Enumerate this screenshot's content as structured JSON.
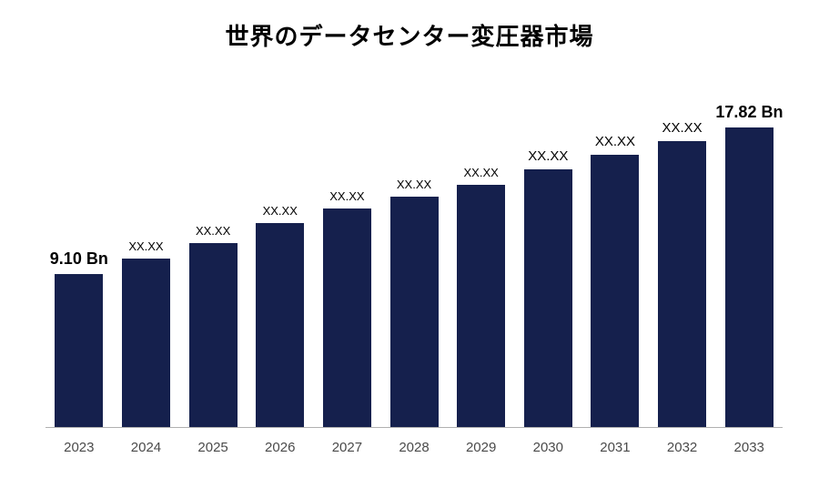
{
  "chart": {
    "type": "bar",
    "title": "世界のデータセンター変圧器市場",
    "title_fontsize": 26,
    "title_color": "#000000",
    "background_color": "#ffffff",
    "axis_line_color": "#b0b0b0",
    "x_tick_fontsize": 15,
    "x_tick_color": "#4a4a4a",
    "categories": [
      "2023",
      "2024",
      "2025",
      "2026",
      "2027",
      "2028",
      "2029",
      "2030",
      "2031",
      "2032",
      "2033"
    ],
    "values": [
      9.1,
      10.0,
      10.9,
      12.1,
      13.0,
      13.7,
      14.4,
      15.3,
      16.2,
      17.0,
      17.82
    ],
    "value_labels": [
      "9.10 Bn",
      "XX.XX",
      "XX.XX",
      "XX.XX",
      "XX.XX",
      "XX.XX",
      "XX.XX",
      "XX.XX",
      "XX.XX",
      "XX.XX",
      "17.82 Bn"
    ],
    "label_bold": [
      true,
      false,
      false,
      false,
      false,
      false,
      false,
      false,
      false,
      false,
      true
    ],
    "label_fontsize": [
      18,
      13,
      13,
      13,
      13,
      13,
      13,
      15,
      15,
      15,
      18
    ],
    "bar_color": "#15204d",
    "bar_width": 0.72,
    "ylim": [
      0,
      20.5
    ],
    "value_label_color": "#000000"
  }
}
